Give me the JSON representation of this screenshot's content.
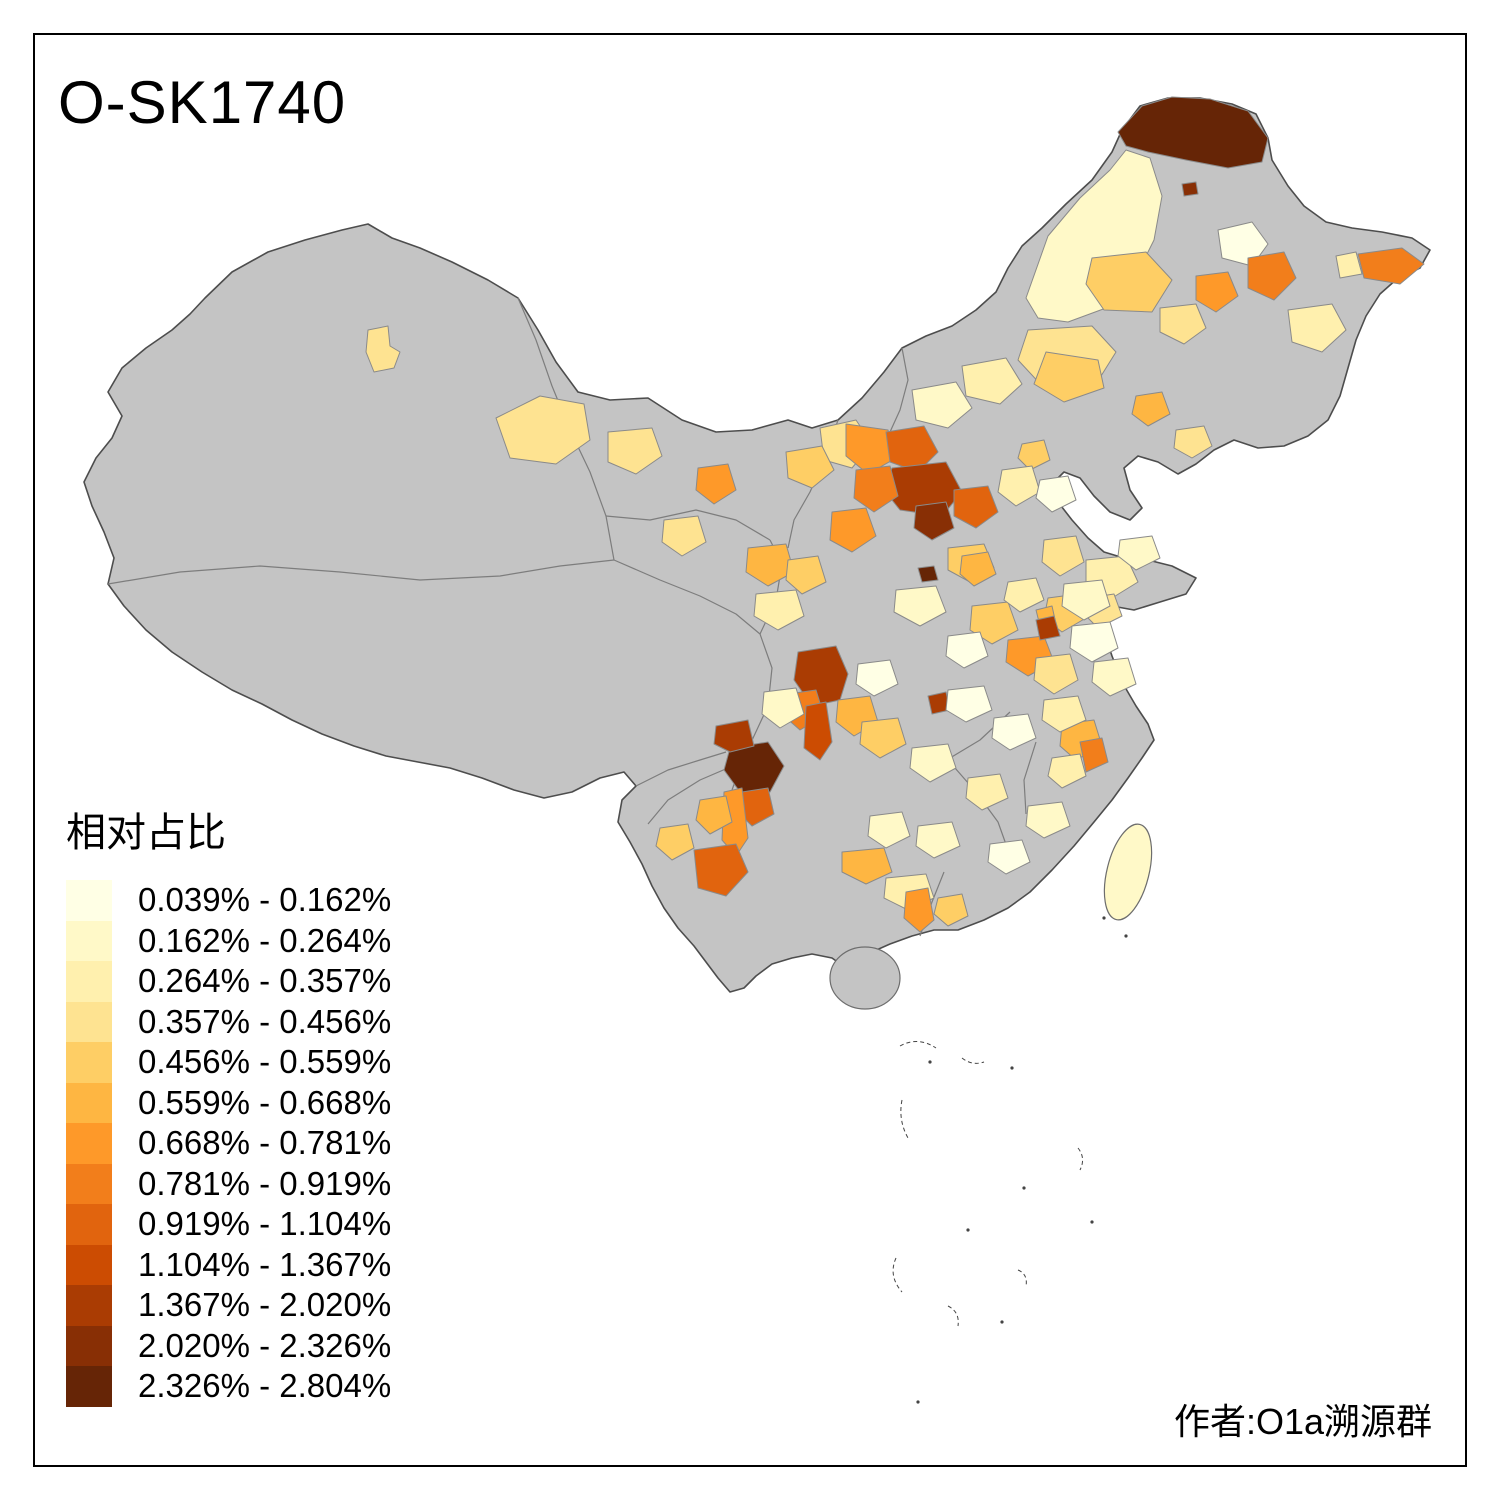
{
  "title": "O-SK1740",
  "attribution": "作者:O1a溯源群",
  "legend": {
    "title": "相对占比",
    "items": [
      {
        "color": "#FFFFE5",
        "label": "0.039% - 0.162%"
      },
      {
        "color": "#FFF9C8",
        "label": "0.162% - 0.264%"
      },
      {
        "color": "#FFF0AE",
        "label": "0.264% - 0.357%"
      },
      {
        "color": "#FEE391",
        "label": "0.357% - 0.456%"
      },
      {
        "color": "#FECE65",
        "label": "0.456% - 0.559%"
      },
      {
        "color": "#FEB642",
        "label": "0.559% - 0.668%"
      },
      {
        "color": "#FE9929",
        "label": "0.668% - 0.781%"
      },
      {
        "color": "#F27E1B",
        "label": "0.781% - 0.919%"
      },
      {
        "color": "#E1640E",
        "label": "0.919% - 1.104%"
      },
      {
        "color": "#CC4C02",
        "label": "1.104% - 1.367%"
      },
      {
        "color": "#AA3C03",
        "label": "1.367% - 2.020%"
      },
      {
        "color": "#882F05",
        "label": "2.020% - 2.326%"
      },
      {
        "color": "#662506",
        "label": "2.326% - 2.804%"
      }
    ]
  },
  "map": {
    "no_data_color": "#C4C4C4",
    "border_color": "#4D4D4D",
    "background": "#FFFFFF",
    "regions": {
      "r01": 13,
      "r02": 12,
      "r03": 2,
      "r04": 5,
      "r05": 1,
      "r06": 8,
      "r07": 3,
      "r08": 8,
      "r09": 3,
      "r10": 7,
      "r11": 4,
      "r12": 6,
      "r13": 4,
      "r14": 4,
      "r15": 5,
      "r16": 3,
      "r17": 2,
      "r18": 4,
      "r19": 7,
      "r20": 5,
      "r21": 9,
      "r22": 11,
      "r23": 12,
      "r24": 8,
      "r25": 9,
      "r26": 7,
      "r27": 5,
      "r28": 13,
      "r29": 6,
      "r30": 5,
      "r31": 3,
      "r32": 1,
      "r33": 4,
      "r34": 5,
      "r35": 6,
      "r36": 3,
      "r37": 4,
      "r38": 2,
      "r39": 4,
      "r40": 4,
      "r41": 7,
      "r42": 6,
      "r43": 4,
      "r44": 5,
      "r45": 3,
      "r46": 4,
      "r47": 2,
      "r48": 5,
      "r49": 7,
      "r50": 11,
      "r51": 4,
      "r52": 1,
      "r53": 3,
      "r54": 11,
      "r55": 8,
      "r56": 10,
      "r57": 2,
      "r58": 6,
      "r59": 1,
      "r60": 13,
      "r61": 11,
      "r62": 9,
      "r63": 7,
      "r64": 9,
      "r65": 6,
      "r66": 5,
      "r67": 6,
      "r68": 3,
      "r69": 7,
      "r70": 5,
      "r71": 2,
      "r72": 11,
      "r73": 5,
      "r74": 2,
      "r75": 1,
      "r76": 3,
      "r77": 2,
      "r78": 6,
      "r79": 8,
      "r80": 2,
      "r81": 1,
      "r82": 2,
      "r83": 3,
      "r84": 1,
      "r85": 2,
      "r86": 1,
      "r87": 3,
      "r88": 2
    }
  }
}
